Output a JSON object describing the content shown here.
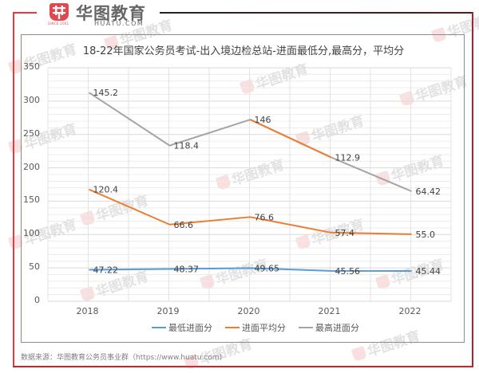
{
  "header": {
    "logo_cn": "华图教育",
    "logo_en": "HUATU.COM",
    "logo_since": "SINCE 2001"
  },
  "chart_data": {
    "type": "line",
    "stacked": true,
    "title": "18-22年国家公务员考试-出入境边检总站-进面最低分,最高分，平均分",
    "xlabel": "",
    "ylabel": "",
    "categories": [
      "2018",
      "2019",
      "2020",
      "2021",
      "2022"
    ],
    "ylim": [
      0,
      350
    ],
    "yticks": [
      0,
      50,
      100,
      150,
      200,
      250,
      300,
      350
    ],
    "grid": {
      "major_step": 50,
      "minor_step": 10,
      "vertical": true
    },
    "legend_position": "bottom",
    "series": [
      {
        "name": "最低进面分",
        "color": "#5b9bd5",
        "values": [
          47.22,
          48.37,
          49.65,
          45.56,
          45.44
        ],
        "labels": [
          "47.22",
          "48.37",
          "49.65",
          "45.56",
          "45.44"
        ]
      },
      {
        "name": "进面平均分",
        "color": "#ed7d31",
        "values": [
          120.4,
          66.6,
          76.6,
          57.4,
          55.0
        ],
        "labels": [
          "120.4",
          "66.6",
          "76.6",
          "57.4",
          "55.0"
        ]
      },
      {
        "name": "最高进面分",
        "color": "#a5a5a5",
        "values": [
          145.2,
          118.4,
          146,
          112.9,
          64.42
        ],
        "labels": [
          "145.2",
          "118.4",
          "146",
          "112.9",
          "64.42"
        ]
      }
    ]
  },
  "footer": {
    "source": "数据来源：华图教育公务员事业群（https://www.huatu.com)"
  },
  "watermark": {
    "text": "华图教育"
  }
}
